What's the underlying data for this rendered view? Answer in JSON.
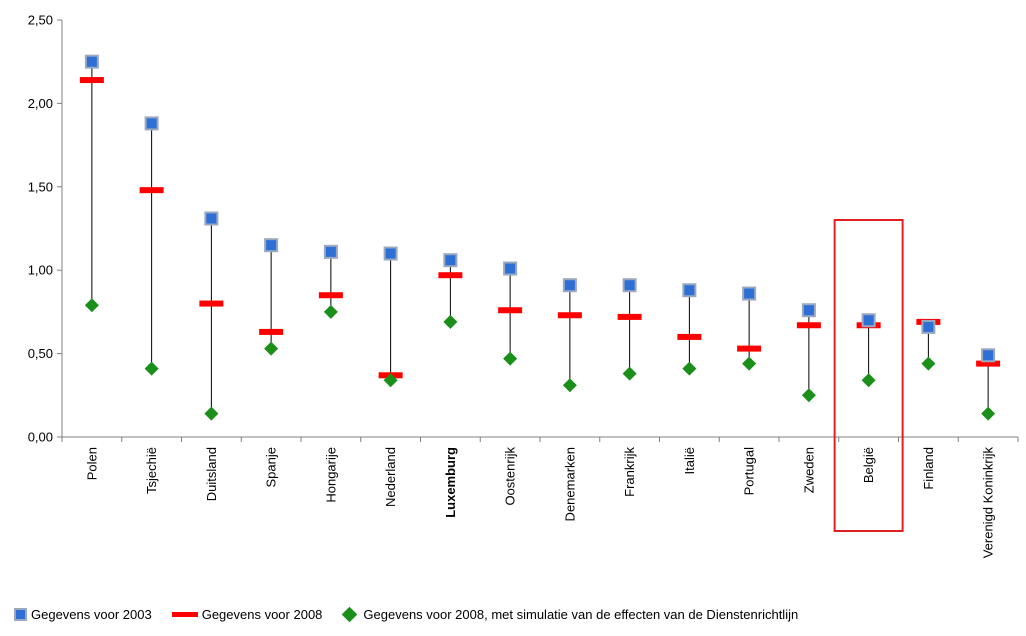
{
  "chart_data": {
    "type": "scatter",
    "categories": [
      "Polen",
      "Tsjechië",
      "Duitsland",
      "Spanje",
      "Hongarije",
      "Nederland",
      "Luxemburg",
      "Oostenrijk",
      "Denemarken",
      "Frankrijk",
      "Italië",
      "Portugal",
      "Zweden",
      "België",
      "Finland",
      "Verenigd Koninkrijk"
    ],
    "series": [
      {
        "name": "Gegevens voor 2003",
        "values": [
          2.25,
          1.88,
          1.31,
          1.15,
          1.11,
          1.1,
          1.06,
          1.01,
          0.91,
          0.91,
          0.88,
          0.86,
          0.76,
          0.7,
          0.66,
          0.49
        ]
      },
      {
        "name": "Gegevens voor 2008",
        "values": [
          2.14,
          1.48,
          0.8,
          0.63,
          0.85,
          0.37,
          0.97,
          0.76,
          0.73,
          0.72,
          0.6,
          0.53,
          0.67,
          0.67,
          0.69,
          0.44
        ]
      },
      {
        "name": "Gegevens voor 2008, met simulatie van de effecten van de Dienstenrichtlijn",
        "values": [
          0.79,
          0.41,
          0.14,
          0.53,
          0.75,
          0.34,
          0.69,
          0.47,
          0.31,
          0.38,
          0.41,
          0.44,
          0.25,
          0.34,
          0.44,
          0.14
        ]
      }
    ],
    "y_ticks": [
      "0,00",
      "0,50",
      "1,00",
      "1,50",
      "2,00",
      "2,50"
    ],
    "ylim": [
      0,
      2.5
    ],
    "highlighted_category": "België",
    "bold_category": "Luxemburg",
    "grid": false,
    "legend_position": "bottom",
    "colors": {
      "s2003": "#2e6fd6",
      "s2003_border": "#9aa8c0",
      "s2008": "#ff0000",
      "sim": "#1a8f1a",
      "highlight": "#e02020",
      "axis": "#808080"
    }
  }
}
